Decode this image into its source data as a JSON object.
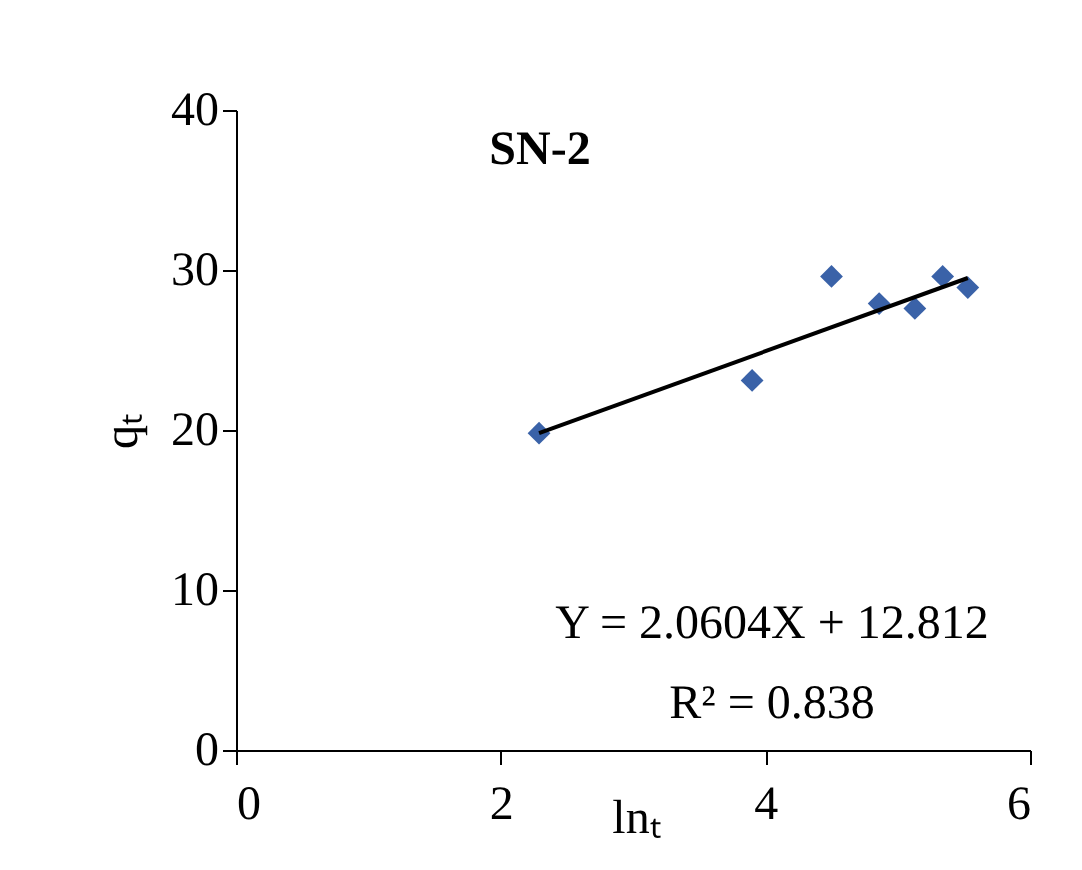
{
  "chart_data": {
    "type": "scatter",
    "title": "SN-2",
    "xlabel": "lnₜ",
    "ylabel": "qₜ",
    "xlim": [
      0,
      6
    ],
    "xticks": [
      0,
      2,
      4,
      6
    ],
    "ylim": [
      0,
      40
    ],
    "yticks": [
      0,
      10,
      20,
      30,
      40
    ],
    "grid": false,
    "series": [
      {
        "color": "#3a62a8",
        "marker": "diamond",
        "x": [
          2.29,
          3.9,
          4.5,
          4.86,
          5.13,
          5.34,
          5.53
        ],
        "values": [
          19.8,
          23.1,
          29.6,
          27.9,
          27.6,
          29.6,
          28.9
        ]
      },
      {
        "type": "line",
        "color": "#000000",
        "x": [
          2.29,
          5.53
        ],
        "values": [
          19.8,
          29.5
        ]
      }
    ],
    "annotations": [
      "Y = 2.0604X + 12.812",
      "R² = 0.838"
    ]
  }
}
